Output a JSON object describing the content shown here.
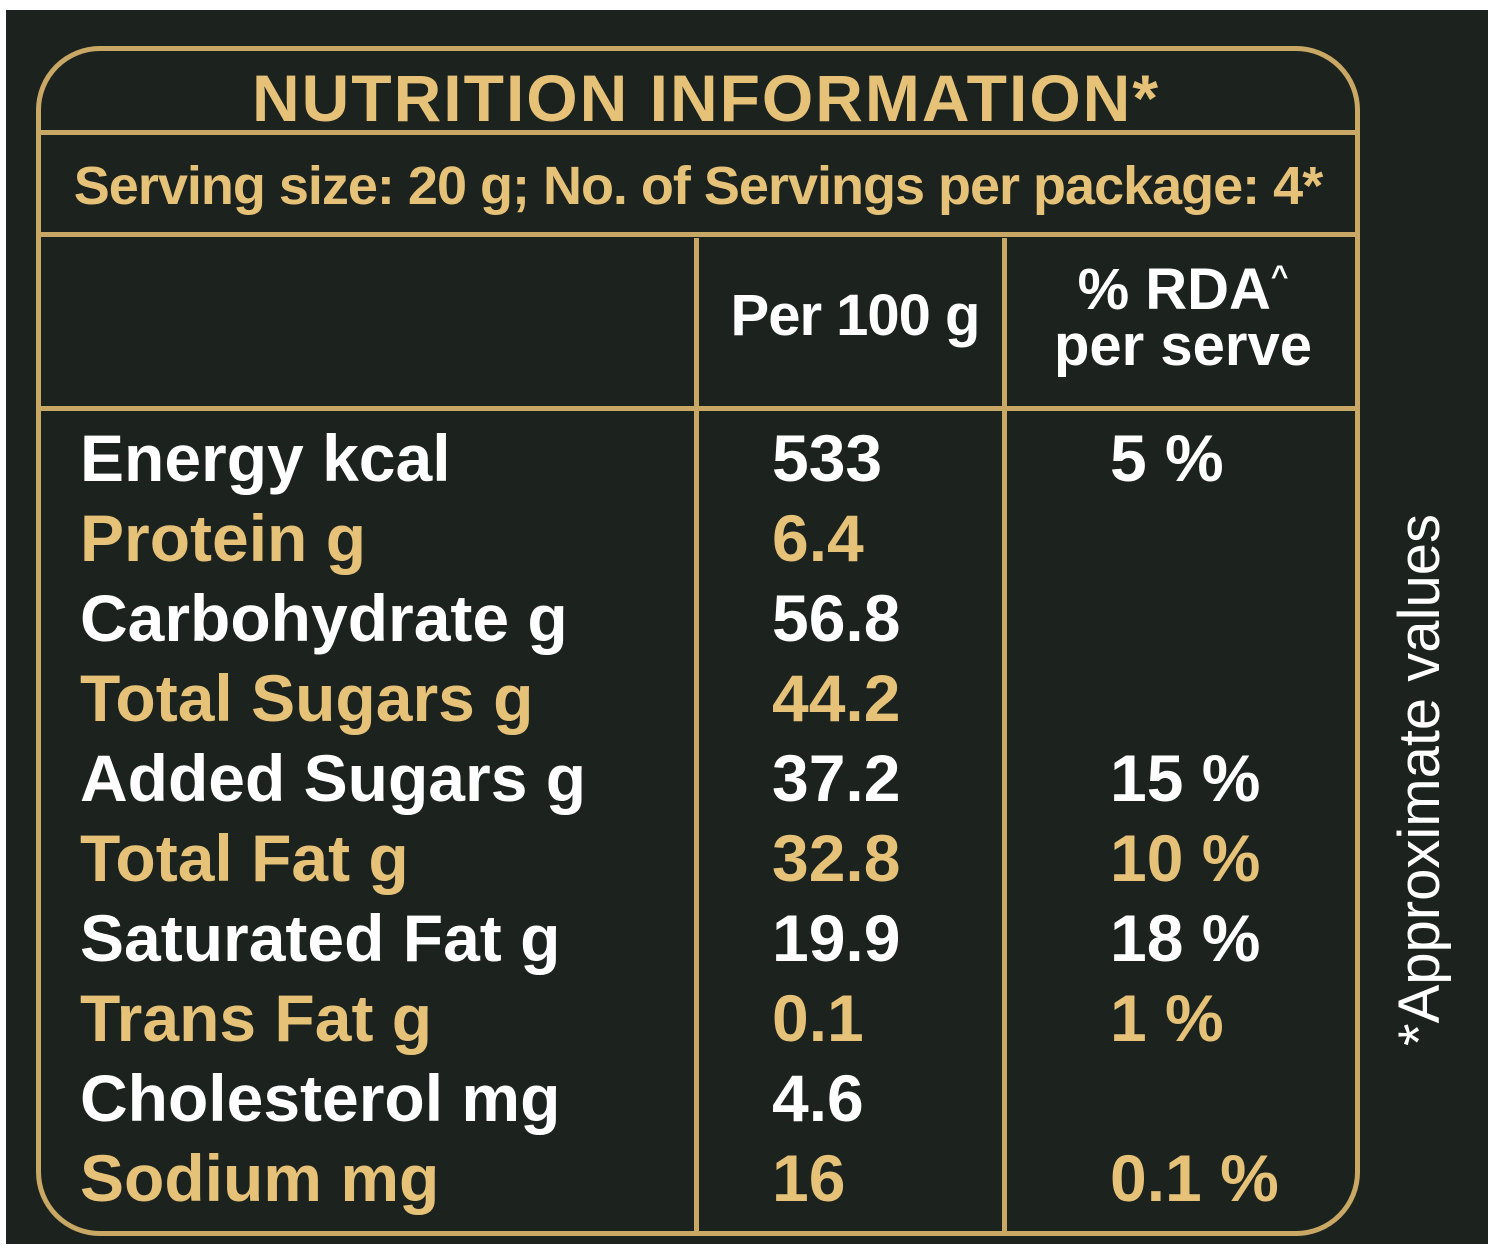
{
  "title": "NUTRITION INFORMATION*",
  "serving_line": "Serving size: 20 g; No. of Servings per package: 4*",
  "columns": {
    "per100": "Per 100 g",
    "rda_line1": "% RDA",
    "rda_caret": "^",
    "rda_line2": "per serve"
  },
  "rows": [
    {
      "name": "Energy kcal",
      "value": "533",
      "rda": "5 %",
      "color": "white"
    },
    {
      "name": "Protein g",
      "value": "6.4",
      "rda": "",
      "color": "gold"
    },
    {
      "name": "Carbohydrate g",
      "value": "56.8",
      "rda": "",
      "color": "white"
    },
    {
      "name": "Total Sugars g",
      "value": "44.2",
      "rda": "",
      "color": "gold"
    },
    {
      "name": "Added Sugars g",
      "value": "37.2",
      "rda": "15 %",
      "color": "white"
    },
    {
      "name": "Total Fat g",
      "value": "32.8",
      "rda": "10 %",
      "color": "gold"
    },
    {
      "name": "Saturated Fat g",
      "value": "19.9",
      "rda": "18 %",
      "color": "white"
    },
    {
      "name": "Trans Fat g",
      "value": "0.1",
      "rda": "1 %",
      "color": "gold"
    },
    {
      "name": "Cholesterol mg",
      "value": "4.6",
      "rda": "",
      "color": "white"
    },
    {
      "name": "Sodium mg",
      "value": "16",
      "rda": "0.1 %",
      "color": "gold"
    }
  ],
  "side_note": "*Approximate values",
  "colors": {
    "background": "#1c231f",
    "gold": "#e6c279",
    "border": "#c9a865",
    "white": "#ffffff"
  }
}
